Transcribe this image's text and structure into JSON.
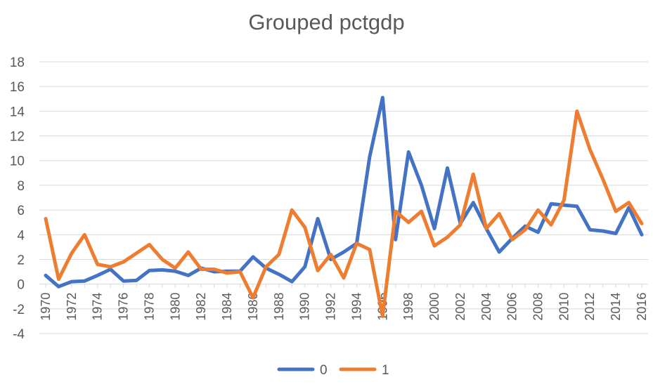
{
  "chart_data": {
    "type": "line",
    "title": "Grouped pctgdp",
    "xlabel": "",
    "ylabel": "",
    "ylim": [
      -4,
      18
    ],
    "ytick_step": 2,
    "grid": true,
    "legend_position": "bottom",
    "x": [
      1970,
      1971,
      1972,
      1973,
      1974,
      1975,
      1976,
      1977,
      1978,
      1979,
      1980,
      1981,
      1982,
      1983,
      1984,
      1985,
      1986,
      1987,
      1988,
      1989,
      1990,
      1991,
      1992,
      1993,
      1994,
      1995,
      1996,
      1997,
      1998,
      1999,
      2000,
      2001,
      2002,
      2003,
      2004,
      2005,
      2006,
      2007,
      2008,
      2009,
      2010,
      2011,
      2012,
      2013,
      2014,
      2015,
      2016
    ],
    "x_tick_labels": [
      "1970",
      "1972",
      "1974",
      "1976",
      "1978",
      "1980",
      "1982",
      "1984",
      "1986",
      "1988",
      "1990",
      "1992",
      "1994",
      "1996",
      "1998",
      "2000",
      "2002",
      "2004",
      "2006",
      "2008",
      "2010",
      "2012",
      "2014",
      "2016"
    ],
    "series": [
      {
        "name": "0",
        "color": "#4472C4",
        "values": [
          0.7,
          -0.2,
          0.2,
          0.25,
          0.7,
          1.2,
          0.25,
          0.3,
          1.1,
          1.15,
          1.05,
          0.7,
          1.3,
          1.0,
          1.05,
          1.05,
          2.2,
          1.3,
          0.8,
          0.2,
          1.4,
          5.3,
          2.0,
          2.6,
          3.3,
          10.3,
          15.1,
          3.6,
          10.7,
          8.0,
          4.5,
          9.4,
          4.9,
          6.6,
          4.5,
          2.6,
          3.7,
          4.7,
          4.2,
          6.5,
          6.4,
          6.3,
          4.4,
          4.3,
          4.1,
          6.2,
          4.0
        ]
      },
      {
        "name": "1",
        "color": "#ED7D31",
        "values": [
          5.3,
          0.4,
          2.5,
          4.0,
          1.6,
          1.4,
          1.8,
          2.5,
          3.2,
          2.0,
          1.3,
          2.6,
          1.2,
          1.2,
          0.9,
          1.0,
          -1.1,
          1.4,
          2.4,
          6.0,
          4.6,
          1.1,
          2.4,
          0.5,
          3.3,
          2.8,
          -2.6,
          5.9,
          5.0,
          5.9,
          3.1,
          3.8,
          4.8,
          8.9,
          4.5,
          5.7,
          3.6,
          4.4,
          6.0,
          4.8,
          6.8,
          14.0,
          10.9,
          8.5,
          5.9,
          6.6,
          4.9
        ]
      }
    ]
  }
}
